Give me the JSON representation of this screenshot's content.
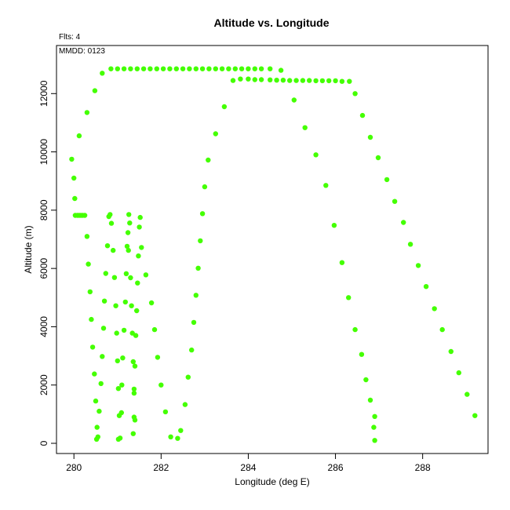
{
  "chart_data": {
    "type": "scatter",
    "title": "Altitude vs. Longitude",
    "xlabel": "Longitude (deg E)",
    "ylabel": "Altitude (m)",
    "annotations": {
      "flights": "Flts: 4",
      "date": "MMDD: 0123"
    },
    "xlim": [
      279.6,
      289.5
    ],
    "ylim": [
      -350,
      13650
    ],
    "xticks": [
      280,
      282,
      284,
      286,
      288
    ],
    "yticks": [
      0,
      2000,
      4000,
      6000,
      8000,
      10000,
      12000
    ],
    "point_color": "#44ff00",
    "series": [
      {
        "points": [
          [
            279.95,
            9750
          ],
          [
            280.0,
            9100
          ],
          [
            280.02,
            8400
          ],
          [
            280.03,
            7820
          ],
          [
            280.08,
            7820
          ],
          [
            280.12,
            7820
          ],
          [
            280.16,
            7820
          ],
          [
            280.2,
            7820
          ],
          [
            280.25,
            7820
          ],
          [
            280.12,
            10550
          ],
          [
            280.3,
            11350
          ],
          [
            280.48,
            12100
          ],
          [
            280.65,
            12700
          ],
          [
            280.85,
            12850
          ],
          [
            281.0,
            12850
          ],
          [
            281.15,
            12850
          ],
          [
            281.3,
            12850
          ],
          [
            281.45,
            12850
          ],
          [
            281.6,
            12850
          ],
          [
            281.75,
            12850
          ],
          [
            281.9,
            12850
          ],
          [
            282.05,
            12850
          ],
          [
            282.2,
            12850
          ],
          [
            282.35,
            12850
          ],
          [
            282.5,
            12850
          ],
          [
            282.65,
            12850
          ],
          [
            282.8,
            12850
          ],
          [
            282.95,
            12850
          ],
          [
            283.1,
            12850
          ],
          [
            283.25,
            12850
          ],
          [
            283.4,
            12850
          ],
          [
            283.55,
            12850
          ],
          [
            283.7,
            12850
          ],
          [
            283.85,
            12850
          ],
          [
            284.0,
            12850
          ],
          [
            284.15,
            12850
          ],
          [
            284.3,
            12850
          ],
          [
            284.5,
            12850
          ],
          [
            284.75,
            12800
          ],
          [
            280.3,
            7100
          ],
          [
            280.33,
            6150
          ],
          [
            280.37,
            5200
          ],
          [
            280.4,
            4250
          ],
          [
            280.43,
            3300
          ],
          [
            280.47,
            2380
          ],
          [
            280.5,
            1450
          ],
          [
            280.53,
            550
          ],
          [
            280.55,
            220
          ],
          [
            280.52,
            140
          ],
          [
            280.58,
            1100
          ],
          [
            280.62,
            2050
          ],
          [
            280.65,
            2980
          ],
          [
            280.68,
            3950
          ],
          [
            280.7,
            4880
          ],
          [
            280.73,
            5830
          ],
          [
            280.77,
            6780
          ],
          [
            280.8,
            7780
          ],
          [
            280.83,
            7850
          ],
          [
            280.86,
            7550
          ],
          [
            280.9,
            6620
          ],
          [
            280.93,
            5690
          ],
          [
            280.96,
            4720
          ],
          [
            280.98,
            3780
          ],
          [
            281.0,
            2830
          ],
          [
            281.02,
            1880
          ],
          [
            281.04,
            950
          ],
          [
            281.02,
            140
          ],
          [
            281.06,
            180
          ],
          [
            281.09,
            1050
          ],
          [
            281.1,
            2000
          ],
          [
            281.12,
            2930
          ],
          [
            281.15,
            3880
          ],
          [
            281.18,
            4850
          ],
          [
            281.2,
            5820
          ],
          [
            281.22,
            6760
          ],
          [
            281.24,
            7230
          ],
          [
            281.28,
            7560
          ],
          [
            281.26,
            7850
          ],
          [
            281.25,
            6620
          ],
          [
            281.3,
            5680
          ],
          [
            281.32,
            4720
          ],
          [
            281.34,
            3780
          ],
          [
            281.36,
            2800
          ],
          [
            281.38,
            1860
          ],
          [
            281.38,
            900
          ],
          [
            281.36,
            330
          ],
          [
            281.4,
            800
          ],
          [
            281.38,
            1720
          ],
          [
            281.4,
            2650
          ],
          [
            281.42,
            3700
          ],
          [
            281.44,
            4550
          ],
          [
            281.46,
            5500
          ],
          [
            281.48,
            6430
          ],
          [
            281.5,
            7420
          ],
          [
            281.52,
            7750
          ],
          [
            281.55,
            6720
          ],
          [
            281.65,
            5780
          ],
          [
            281.78,
            4820
          ],
          [
            281.85,
            3900
          ],
          [
            281.92,
            2950
          ],
          [
            282.0,
            2000
          ],
          [
            282.1,
            1080
          ],
          [
            282.22,
            220
          ],
          [
            282.38,
            170
          ],
          [
            282.45,
            440
          ],
          [
            282.55,
            1330
          ],
          [
            282.62,
            2270
          ],
          [
            282.7,
            3200
          ],
          [
            282.75,
            4150
          ],
          [
            282.8,
            5080
          ],
          [
            282.85,
            6010
          ],
          [
            282.9,
            6950
          ],
          [
            282.95,
            7880
          ],
          [
            283.0,
            8800
          ],
          [
            283.08,
            9720
          ],
          [
            283.25,
            10620
          ],
          [
            283.45,
            11550
          ],
          [
            283.65,
            12450
          ],
          [
            283.82,
            12500
          ],
          [
            284.0,
            12500
          ],
          [
            284.15,
            12480
          ],
          [
            284.3,
            12480
          ],
          [
            284.5,
            12470
          ],
          [
            284.65,
            12460
          ],
          [
            284.8,
            12460
          ],
          [
            284.95,
            12450
          ],
          [
            285.1,
            12450
          ],
          [
            285.25,
            12450
          ],
          [
            285.4,
            12450
          ],
          [
            285.55,
            12440
          ],
          [
            285.7,
            12440
          ],
          [
            285.85,
            12440
          ],
          [
            286.0,
            12440
          ],
          [
            286.15,
            12420
          ],
          [
            286.32,
            12420
          ],
          [
            285.05,
            11780
          ],
          [
            285.3,
            10830
          ],
          [
            285.55,
            9900
          ],
          [
            285.78,
            8850
          ],
          [
            285.97,
            7480
          ],
          [
            286.15,
            6200
          ],
          [
            286.3,
            5000
          ],
          [
            286.45,
            3900
          ],
          [
            286.6,
            3050
          ],
          [
            286.7,
            2180
          ],
          [
            286.8,
            1480
          ],
          [
            286.9,
            920
          ],
          [
            286.88,
            550
          ],
          [
            286.9,
            100
          ],
          [
            286.45,
            12000
          ],
          [
            286.62,
            11250
          ],
          [
            286.8,
            10500
          ],
          [
            286.98,
            9800
          ],
          [
            287.18,
            9050
          ],
          [
            287.36,
            8300
          ],
          [
            287.56,
            7580
          ],
          [
            287.72,
            6830
          ],
          [
            287.9,
            6100
          ],
          [
            288.08,
            5380
          ],
          [
            288.27,
            4620
          ],
          [
            288.45,
            3900
          ],
          [
            288.65,
            3150
          ],
          [
            288.83,
            2420
          ],
          [
            289.02,
            1680
          ],
          [
            289.2,
            950
          ]
        ]
      }
    ]
  }
}
